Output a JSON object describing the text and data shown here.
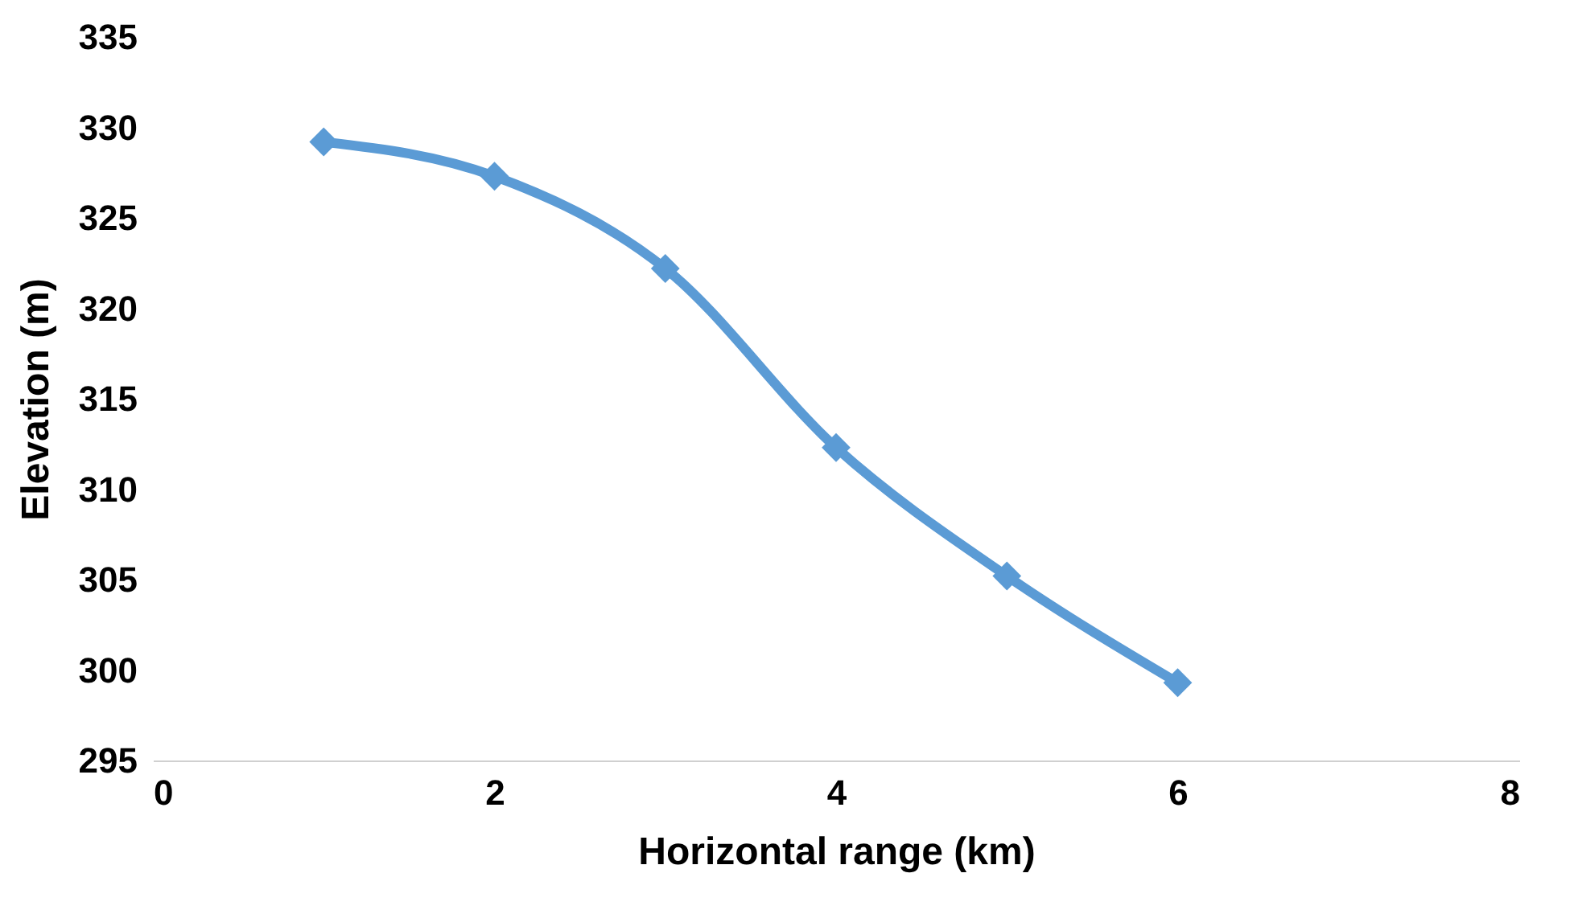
{
  "chart_data": {
    "type": "line",
    "xlabel": "Horizontal range (km)",
    "ylabel": "Elevation  (m)",
    "x": [
      1,
      2,
      3,
      4,
      5,
      6
    ],
    "series": [
      {
        "color": "#5b9bd5",
        "values": [
          329.2,
          327.3,
          322.2,
          312.3,
          305.2,
          299.3
        ]
      }
    ],
    "xlim": [
      0,
      8
    ],
    "xticks": [
      0,
      2,
      4,
      6,
      8
    ],
    "ylim": [
      295,
      335
    ],
    "yticks": [
      295,
      300,
      305,
      310,
      315,
      320,
      325,
      330,
      335
    ],
    "grid": false,
    "marker": "diamond",
    "line_style": "solid"
  }
}
